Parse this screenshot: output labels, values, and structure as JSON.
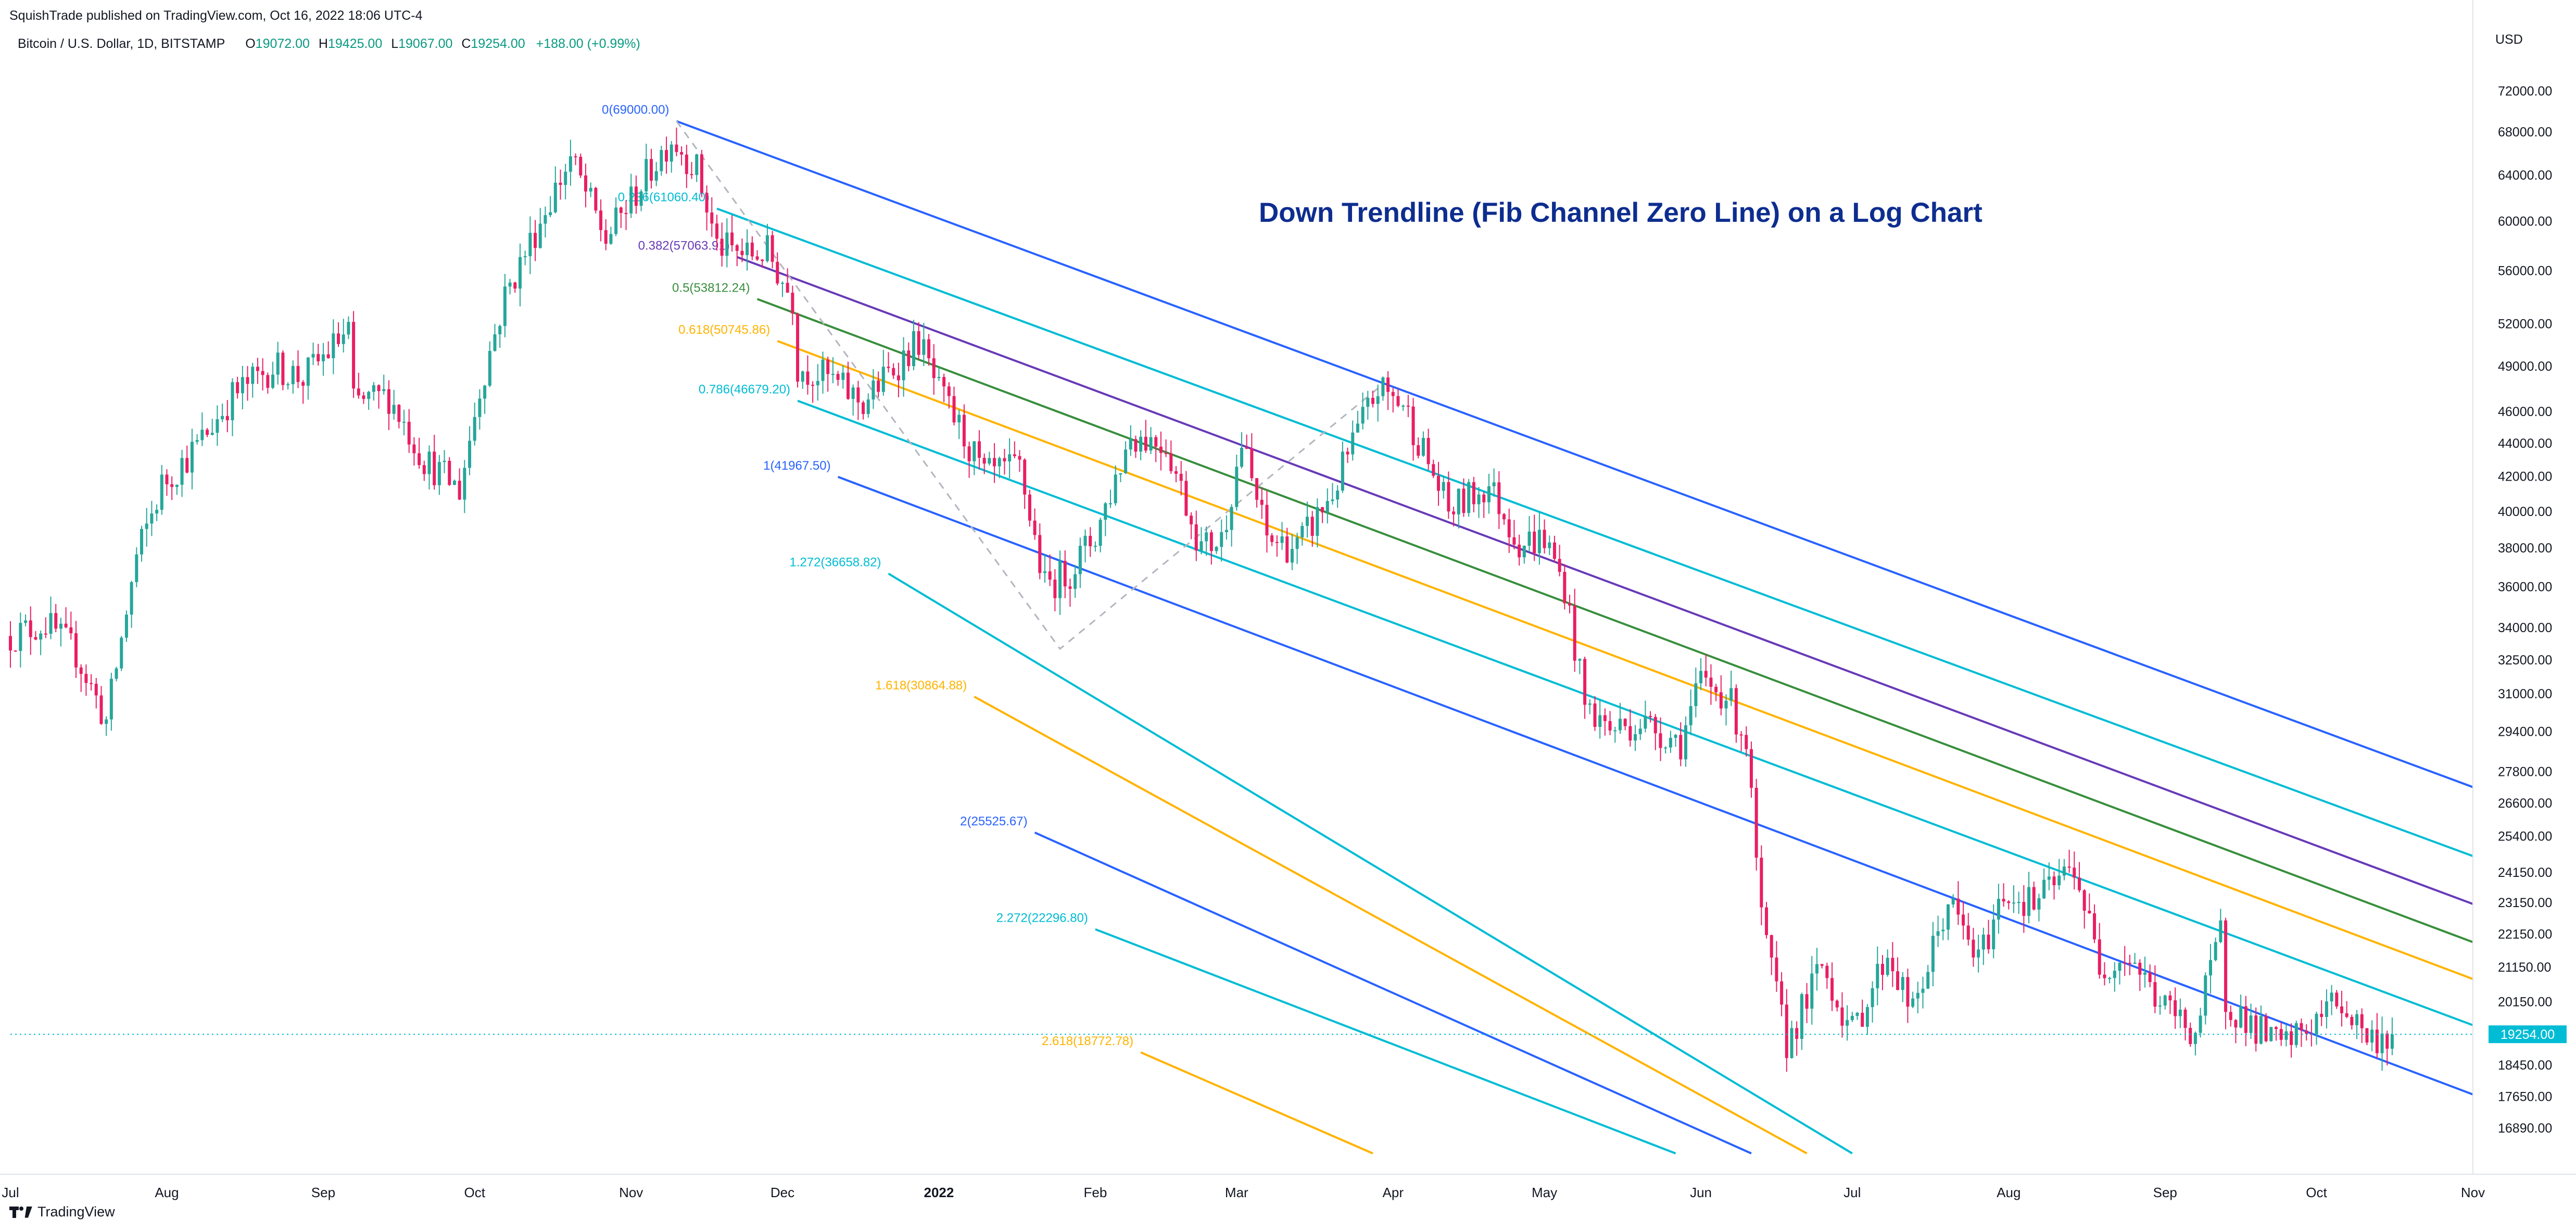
{
  "header": {
    "publisher": "SquishTrade published on TradingView.com, Oct 16, 2022 18:06 UTC-4",
    "symbol": "Bitcoin / U.S. Dollar, 1D, BITSTAMP",
    "o_label": "O",
    "o_value": "19072.00",
    "h_label": "H",
    "h_value": "19425.00",
    "l_label": "L",
    "l_value": "19067.00",
    "c_label": "C",
    "c_value": "19254.00",
    "change": "+188.00 (+0.99%)"
  },
  "footer": {
    "brand": "TradingView"
  },
  "colors": {
    "up": "#26a69a",
    "down": "#e91e63",
    "cyan": "#00bcd4",
    "blue": "#2962ff",
    "purple": "#673ab7",
    "green": "#388e3c",
    "orange": "#ffb300",
    "price_tag": "#00bcd4"
  },
  "chart_data": {
    "type": "candlestick",
    "title": "Down Trendline (Fib Channel Zero Line) on a Log Chart",
    "currency": "USD",
    "y_scale": "log",
    "ylim": [
      16300,
      76000
    ],
    "xlim": [
      "2021-07-01",
      "2022-11-01"
    ],
    "y_ticks": [
      "72000.00",
      "68000.00",
      "64000.00",
      "60000.00",
      "56000.00",
      "52000.00",
      "49000.00",
      "46000.00",
      "44000.00",
      "42000.00",
      "40000.00",
      "38000.00",
      "36000.00",
      "34000.00",
      "32500.00",
      "31000.00",
      "29400.00",
      "27800.00",
      "26600.00",
      "25400.00",
      "24150.00",
      "23150.00",
      "22150.00",
      "21150.00",
      "20150.00",
      "18450.00",
      "17650.00",
      "16890.00"
    ],
    "x_ticks": [
      {
        "label": "Jul",
        "date": "2021-07-01"
      },
      {
        "label": "Aug",
        "date": "2021-08-01"
      },
      {
        "label": "Sep",
        "date": "2021-09-01"
      },
      {
        "label": "Oct",
        "date": "2021-10-01"
      },
      {
        "label": "Nov",
        "date": "2021-11-01"
      },
      {
        "label": "Dec",
        "date": "2021-12-01"
      },
      {
        "label": "2022",
        "date": "2022-01-01",
        "bold": true
      },
      {
        "label": "Feb",
        "date": "2022-02-01"
      },
      {
        "label": "Mar",
        "date": "2022-03-01"
      },
      {
        "label": "Apr",
        "date": "2022-04-01"
      },
      {
        "label": "May",
        "date": "2022-05-01"
      },
      {
        "label": "Jun",
        "date": "2022-06-01"
      },
      {
        "label": "Jul",
        "date": "2022-07-01"
      },
      {
        "label": "Aug",
        "date": "2022-08-01"
      },
      {
        "label": "Sep",
        "date": "2022-09-01"
      },
      {
        "label": "Oct",
        "date": "2022-10-01"
      },
      {
        "label": "Nov",
        "date": "2022-11-01"
      }
    ],
    "last_price": {
      "value": 19254,
      "label": "19254.00"
    },
    "price_path": [
      [
        "2021-07-01",
        33600
      ],
      [
        "2021-07-08",
        34200
      ],
      [
        "2021-07-14",
        32800
      ],
      [
        "2021-07-20",
        29800
      ],
      [
        "2021-07-26",
        37500
      ],
      [
        "2021-07-31",
        41500
      ],
      [
        "2021-08-07",
        43800
      ],
      [
        "2021-08-14",
        47000
      ],
      [
        "2021-08-22",
        49000
      ],
      [
        "2021-08-28",
        48200
      ],
      [
        "2021-09-06",
        51500
      ],
      [
        "2021-09-07",
        46500
      ],
      [
        "2021-09-14",
        47000
      ],
      [
        "2021-09-21",
        43000
      ],
      [
        "2021-09-28",
        41200
      ],
      [
        "2021-10-02",
        47500
      ],
      [
        "2021-10-07",
        54000
      ],
      [
        "2021-10-15",
        61000
      ],
      [
        "2021-10-20",
        65500
      ],
      [
        "2021-10-27",
        58500
      ],
      [
        "2021-11-02",
        62500
      ],
      [
        "2021-11-09",
        67500
      ],
      [
        "2021-11-14",
        64500
      ],
      [
        "2021-11-18",
        58000
      ],
      [
        "2021-11-24",
        57200
      ],
      [
        "2021-11-28",
        57500
      ],
      [
        "2021-12-03",
        53800
      ],
      [
        "2021-12-04",
        49000
      ],
      [
        "2021-12-10",
        48200
      ],
      [
        "2021-12-17",
        46500
      ],
      [
        "2021-12-22",
        48500
      ],
      [
        "2021-12-28",
        50800
      ],
      [
        "2022-01-01",
        47200
      ],
      [
        "2022-01-05",
        45000
      ],
      [
        "2022-01-10",
        42000
      ],
      [
        "2022-01-17",
        42500
      ],
      [
        "2022-01-22",
        36000
      ],
      [
        "2022-01-27",
        36800
      ],
      [
        "2022-02-01",
        38700
      ],
      [
        "2022-02-08",
        44500
      ],
      [
        "2022-02-15",
        44000
      ],
      [
        "2022-02-22",
        38000
      ],
      [
        "2022-02-26",
        38500
      ],
      [
        "2022-03-02",
        44000
      ],
      [
        "2022-03-07",
        38500
      ],
      [
        "2022-03-13",
        38000
      ],
      [
        "2022-03-20",
        41000
      ],
      [
        "2022-03-24",
        44000
      ],
      [
        "2022-03-29",
        47500
      ],
      [
        "2022-04-03",
        46500
      ],
      [
        "2022-04-07",
        43500
      ],
      [
        "2022-04-12",
        40000
      ],
      [
        "2022-04-20",
        41500
      ],
      [
        "2022-04-26",
        38300
      ],
      [
        "2022-05-01",
        38500
      ],
      [
        "2022-05-05",
        36000
      ],
      [
        "2022-05-09",
        30500
      ],
      [
        "2022-05-14",
        29500
      ],
      [
        "2022-05-20",
        29800
      ],
      [
        "2022-05-28",
        29000
      ],
      [
        "2022-06-01",
        31500
      ],
      [
        "2022-06-06",
        31000
      ],
      [
        "2022-06-10",
        29000
      ],
      [
        "2022-06-13",
        22500
      ],
      [
        "2022-06-18",
        19000
      ],
      [
        "2022-06-25",
        21200
      ],
      [
        "2022-07-01",
        19300
      ],
      [
        "2022-07-08",
        21600
      ],
      [
        "2022-07-13",
        19800
      ],
      [
        "2022-07-20",
        23200
      ],
      [
        "2022-07-26",
        21300
      ],
      [
        "2022-07-31",
        23500
      ],
      [
        "2022-08-06",
        23100
      ],
      [
        "2022-08-14",
        24400
      ],
      [
        "2022-08-19",
        21200
      ],
      [
        "2022-08-25",
        21500
      ],
      [
        "2022-08-31",
        20100
      ],
      [
        "2022-09-07",
        19300
      ],
      [
        "2022-09-12",
        22200
      ],
      [
        "2022-09-13",
        20200
      ],
      [
        "2022-09-19",
        19400
      ],
      [
        "2022-09-24",
        18900
      ],
      [
        "2022-09-30",
        19500
      ],
      [
        "2022-10-05",
        20200
      ],
      [
        "2022-10-12",
        19100
      ],
      [
        "2022-10-16",
        19254
      ]
    ],
    "fib_channel": {
      "levels": [
        {
          "label": "0(69000.00)",
          "color": "#2962ff",
          "anchor": [
            "2021-11-10",
            69000
          ],
          "end": [
            "2022-11-01",
            27200
          ]
        },
        {
          "label": "0.236(61060.40)",
          "color": "#00bcd4",
          "anchor": [
            "2021-11-18",
            61060.4
          ],
          "end": [
            "2022-11-01",
            24700
          ]
        },
        {
          "label": "0.382(57063.91)",
          "color": "#673ab7",
          "anchor": [
            "2021-11-22",
            57063.91
          ],
          "end": [
            "2022-11-01",
            23100
          ]
        },
        {
          "label": "0.5(53812.24)",
          "color": "#388e3c",
          "anchor": [
            "2021-11-26",
            53812.24
          ],
          "end": [
            "2022-11-01",
            21900
          ]
        },
        {
          "label": "0.618(50745.86)",
          "color": "#ffb300",
          "anchor": [
            "2021-11-30",
            50745.86
          ],
          "end": [
            "2022-11-01",
            20800
          ]
        },
        {
          "label": "0.786(46679.20)",
          "color": "#00bcd4",
          "anchor": [
            "2021-12-04",
            46679.2
          ],
          "end": [
            "2022-11-01",
            19500
          ]
        },
        {
          "label": "1(41967.50)",
          "color": "#2962ff",
          "anchor": [
            "2021-12-12",
            41967.5
          ],
          "end": [
            "2022-11-01",
            17700
          ]
        },
        {
          "label": "1.272(36658.82)",
          "color": "#00bcd4",
          "anchor": [
            "2021-12-22",
            36658.82
          ],
          "end": [
            "2022-07-01",
            16300
          ]
        },
        {
          "label": "1.618(30864.88)",
          "color": "#ffb300",
          "anchor": [
            "2022-01-08",
            30864.88
          ],
          "end": [
            "2022-06-22",
            16300
          ]
        },
        {
          "label": "2(25525.67)",
          "color": "#2962ff",
          "anchor": [
            "2022-01-20",
            25525.67
          ],
          "end": [
            "2022-06-11",
            16300
          ]
        },
        {
          "label": "2.272(22296.80)",
          "color": "#00bcd4",
          "anchor": [
            "2022-02-01",
            22296.8
          ],
          "end": [
            "2022-05-27",
            16300
          ]
        },
        {
          "label": "2.618(18772.78)",
          "color": "#ffb300",
          "anchor": [
            "2022-02-10",
            18772.78
          ],
          "end": [
            "2022-03-28",
            16300
          ]
        }
      ],
      "dashed_guide": [
        [
          "2021-11-10",
          69000
        ],
        [
          "2022-01-25",
          33000
        ],
        [
          "2022-03-29",
          47500
        ]
      ]
    }
  }
}
